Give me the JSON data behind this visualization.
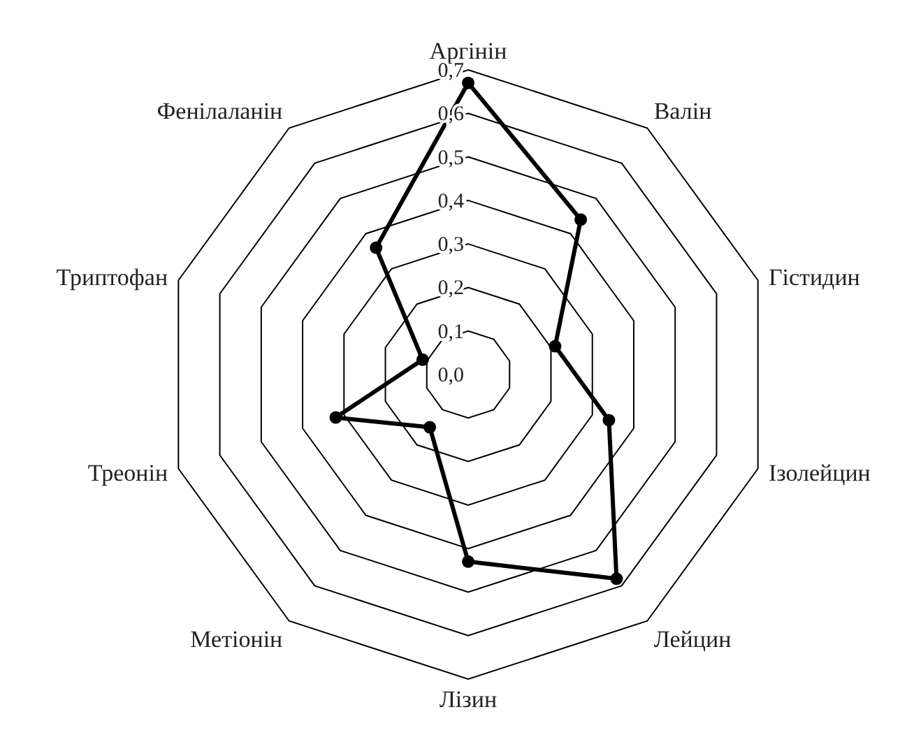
{
  "chart_data": {
    "type": "radar",
    "categories": [
      "Аргінін",
      "Валін",
      "Гістидин",
      "Ізолейцин",
      "Лейцин",
      "Лізин",
      "Метіонін",
      "Треонін",
      "Триптофан",
      "Фенілаланін"
    ],
    "series": [
      {
        "color": "#000000",
        "values": [
          0.67,
          0.44,
          0.21,
          0.34,
          0.58,
          0.43,
          0.15,
          0.32,
          0.11,
          0.36
        ]
      }
    ],
    "ylim": [
      0,
      0.7
    ],
    "yticks": [
      {
        "value": 0,
        "label": "0,0"
      },
      {
        "value": 0.1,
        "label": "0,1"
      },
      {
        "value": 0.2,
        "label": "0,2"
      },
      {
        "value": 0.3,
        "label": "0,3"
      },
      {
        "value": 0.4,
        "label": "0,4"
      },
      {
        "value": 0.5,
        "label": "0,5"
      },
      {
        "value": 0.6,
        "label": "0,6"
      },
      {
        "value": 0.7,
        "label": "0,7"
      }
    ],
    "grid": true,
    "marker": "circle",
    "line_style": "solid"
  }
}
